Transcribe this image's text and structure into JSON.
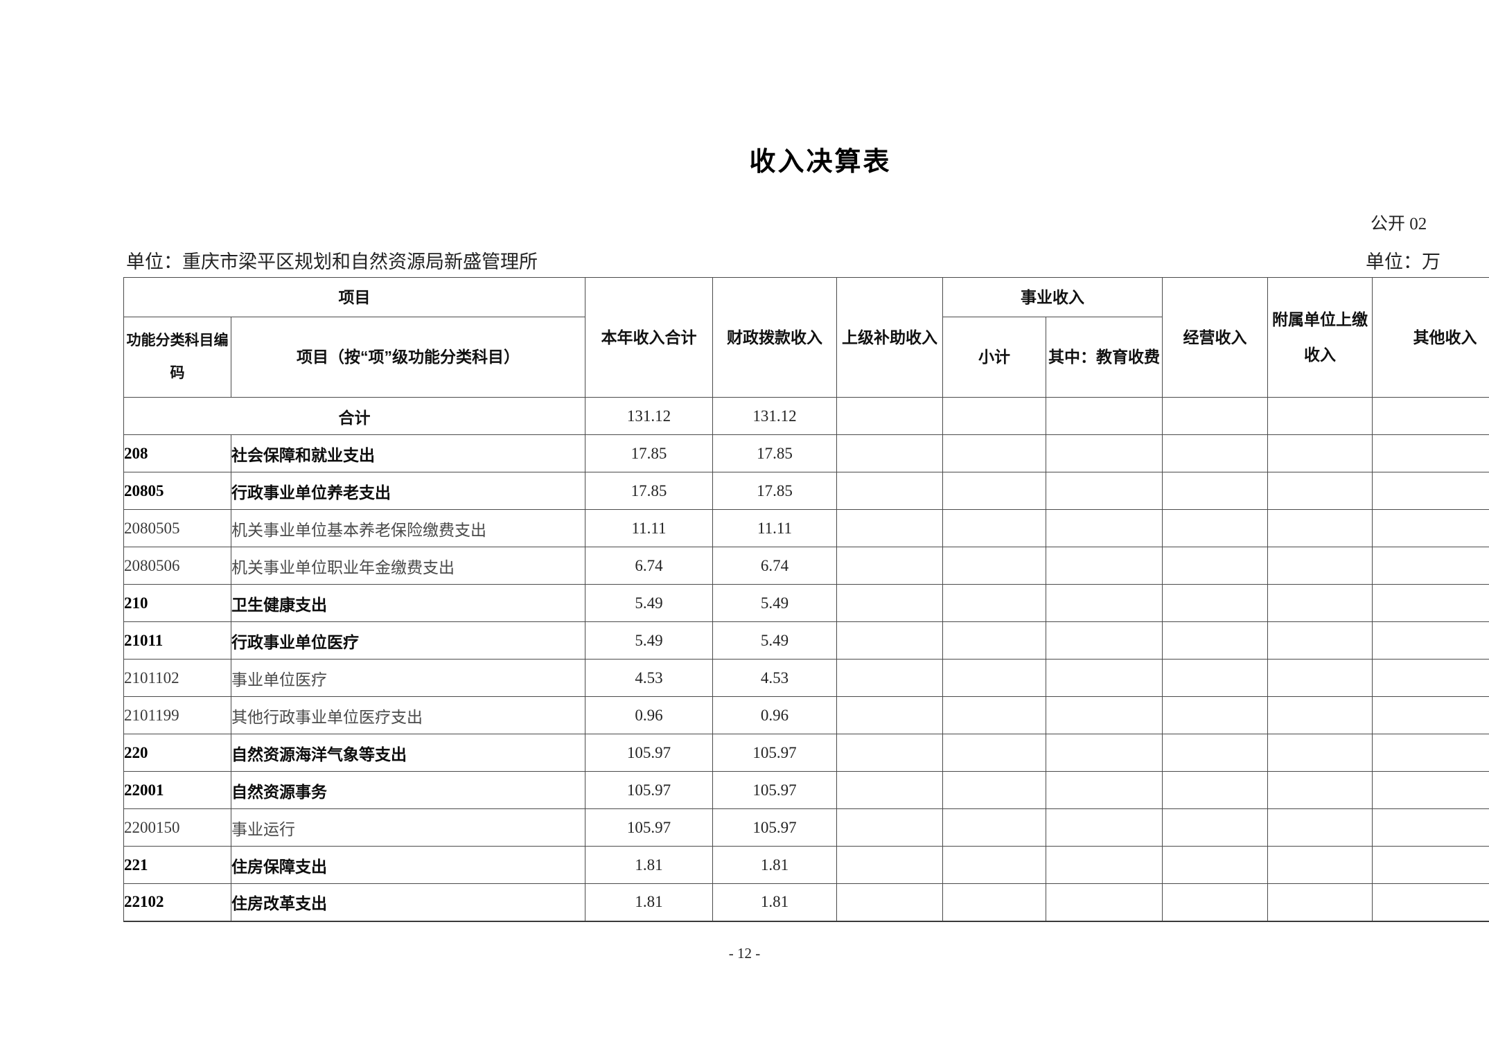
{
  "page": {
    "title": "收入决算表",
    "doc_label": "公开 02",
    "unit_left": "单位：重庆市梁平区规划和自然资源局新盛管理所",
    "unit_right": "单位：万",
    "page_number": "- 12 -"
  },
  "table": {
    "headers": {
      "project_group": "项目",
      "code": "功能分类科目编码",
      "item": "项目（按“项”级功能分类科目）",
      "annual_total": "本年收入合计",
      "fiscal_grant": "财政拨款收入",
      "superior_subsidy": "上级补助收入",
      "business_group": "事业收入",
      "business_subtotal": "小计",
      "education_fee": "其中：教育收费",
      "operating": "经营收入",
      "affiliated_remit": "附属单位上缴收入",
      "other": "其他收入"
    },
    "total_row": {
      "label": "合计",
      "annual_total": "131.12",
      "fiscal_grant": "131.12",
      "superior_subsidy": "",
      "business_subtotal": "",
      "education_fee": "",
      "operating": "",
      "affiliated_remit": "",
      "other": ""
    },
    "rows": [
      {
        "code": "208",
        "name": "社会保障和就业支出",
        "annual_total": "17.85",
        "fiscal_grant": "17.85",
        "superior_subsidy": "",
        "business_subtotal": "",
        "education_fee": "",
        "operating": "",
        "affiliated_remit": "",
        "other": "",
        "level": "parent"
      },
      {
        "code": "20805",
        "name": "行政事业单位养老支出",
        "annual_total": "17.85",
        "fiscal_grant": "17.85",
        "superior_subsidy": "",
        "business_subtotal": "",
        "education_fee": "",
        "operating": "",
        "affiliated_remit": "",
        "other": "",
        "level": "parent"
      },
      {
        "code": "2080505",
        "name": "机关事业单位基本养老保险缴费支出",
        "annual_total": "11.11",
        "fiscal_grant": "11.11",
        "superior_subsidy": "",
        "business_subtotal": "",
        "education_fee": "",
        "operating": "",
        "affiliated_remit": "",
        "other": "",
        "level": "leaf"
      },
      {
        "code": "2080506",
        "name": "机关事业单位职业年金缴费支出",
        "annual_total": "6.74",
        "fiscal_grant": "6.74",
        "superior_subsidy": "",
        "business_subtotal": "",
        "education_fee": "",
        "operating": "",
        "affiliated_remit": "",
        "other": "",
        "level": "leaf"
      },
      {
        "code": "210",
        "name": "卫生健康支出",
        "annual_total": "5.49",
        "fiscal_grant": "5.49",
        "superior_subsidy": "",
        "business_subtotal": "",
        "education_fee": "",
        "operating": "",
        "affiliated_remit": "",
        "other": "",
        "level": "parent"
      },
      {
        "code": "21011",
        "name": "行政事业单位医疗",
        "annual_total": "5.49",
        "fiscal_grant": "5.49",
        "superior_subsidy": "",
        "business_subtotal": "",
        "education_fee": "",
        "operating": "",
        "affiliated_remit": "",
        "other": "",
        "level": "parent"
      },
      {
        "code": "2101102",
        "name": "事业单位医疗",
        "annual_total": "4.53",
        "fiscal_grant": "4.53",
        "superior_subsidy": "",
        "business_subtotal": "",
        "education_fee": "",
        "operating": "",
        "affiliated_remit": "",
        "other": "",
        "level": "leaf"
      },
      {
        "code": "2101199",
        "name": "其他行政事业单位医疗支出",
        "annual_total": "0.96",
        "fiscal_grant": "0.96",
        "superior_subsidy": "",
        "business_subtotal": "",
        "education_fee": "",
        "operating": "",
        "affiliated_remit": "",
        "other": "",
        "level": "leaf"
      },
      {
        "code": "220",
        "name": "自然资源海洋气象等支出",
        "annual_total": "105.97",
        "fiscal_grant": "105.97",
        "superior_subsidy": "",
        "business_subtotal": "",
        "education_fee": "",
        "operating": "",
        "affiliated_remit": "",
        "other": "",
        "level": "parent"
      },
      {
        "code": "22001",
        "name": "自然资源事务",
        "annual_total": "105.97",
        "fiscal_grant": "105.97",
        "superior_subsidy": "",
        "business_subtotal": "",
        "education_fee": "",
        "operating": "",
        "affiliated_remit": "",
        "other": "",
        "level": "parent"
      },
      {
        "code": "2200150",
        "name": "事业运行",
        "annual_total": "105.97",
        "fiscal_grant": "105.97",
        "superior_subsidy": "",
        "business_subtotal": "",
        "education_fee": "",
        "operating": "",
        "affiliated_remit": "",
        "other": "",
        "level": "leaf"
      },
      {
        "code": "221",
        "name": "住房保障支出",
        "annual_total": "1.81",
        "fiscal_grant": "1.81",
        "superior_subsidy": "",
        "business_subtotal": "",
        "education_fee": "",
        "operating": "",
        "affiliated_remit": "",
        "other": "",
        "level": "parent"
      },
      {
        "code": "22102",
        "name": "住房改革支出",
        "annual_total": "1.81",
        "fiscal_grant": "1.81",
        "superior_subsidy": "",
        "business_subtotal": "",
        "education_fee": "",
        "operating": "",
        "affiliated_remit": "",
        "other": "",
        "level": "parent"
      }
    ]
  }
}
